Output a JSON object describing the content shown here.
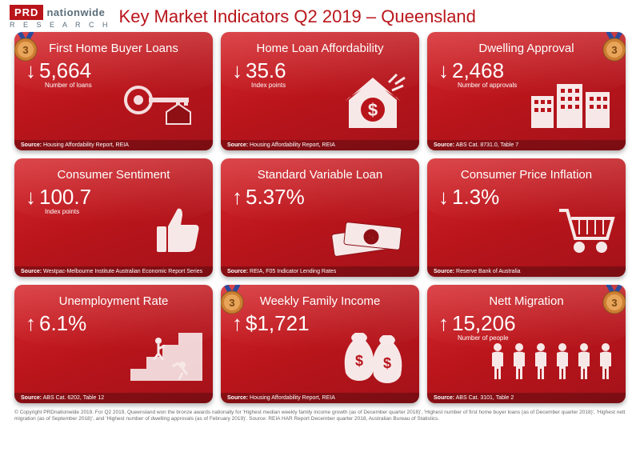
{
  "header": {
    "logo_prd": "PRD",
    "logo_nat": "nationwide",
    "logo_res": "R E S E A R C H",
    "title": "Key Market Indicators Q2 2019 – Queensland"
  },
  "cards": [
    {
      "title": "First Home Buyer Loans",
      "arrow": "down",
      "value": "5,664",
      "sublabel": "Number of loans",
      "source_label": "Source:",
      "source": "Housing Affordability Report, REIA",
      "medal": "left",
      "icon": "key"
    },
    {
      "title": "Home Loan Affordability",
      "arrow": "down",
      "value": "35.6",
      "sublabel": "Index points",
      "source_label": "Source:",
      "source": "Housing Affordability Report, REIA",
      "medal": null,
      "icon": "house-dollar"
    },
    {
      "title": "Dwelling Approval",
      "arrow": "down",
      "value": "2,468",
      "sublabel": "Number of approvals",
      "source_label": "Source:",
      "source": "ABS Cat. 8731.0, Table 7",
      "medal": "right",
      "icon": "buildings"
    },
    {
      "title": "Consumer Sentiment",
      "arrow": "down",
      "value": "100.7",
      "sublabel": "Index points",
      "source_label": "Source:",
      "source": "Westpac-Melbourne Institute Australian Economic Report Series",
      "medal": null,
      "icon": "thumb"
    },
    {
      "title": "Standard Variable Loan",
      "arrow": "up",
      "value": "5.37%",
      "sublabel": "",
      "source_label": "Source:",
      "source": "REIA, F05 Indicator Lending Rates",
      "medal": null,
      "icon": "cash"
    },
    {
      "title": "Consumer Price Inflation",
      "arrow": "down",
      "value": "1.3%",
      "sublabel": "",
      "source_label": "Source:",
      "source": "Reserve Bank of Australia",
      "medal": null,
      "icon": "cart"
    },
    {
      "title": "Unemployment Rate",
      "arrow": "up",
      "value": "6.1%",
      "sublabel": "",
      "source_label": "Source:",
      "source": "ABS Cat. 6202, Table 12",
      "medal": null,
      "icon": "stairs"
    },
    {
      "title": "Weekly Family Income",
      "arrow": "up",
      "value": "$1,721",
      "sublabel": "",
      "source_label": "Source:",
      "source": "Housing Affordability Report, REIA",
      "medal": "left",
      "icon": "moneybags"
    },
    {
      "title": "Nett Migration",
      "arrow": "up",
      "value": "15,206",
      "sublabel": "Number of people",
      "source_label": "Source:",
      "source": "ABS Cat. 3101, Table 2",
      "medal": "right",
      "icon": "people"
    }
  ],
  "medal_number": "3",
  "colors": {
    "brand_red": "#b9151b",
    "card_grad_top": "#d6272c",
    "card_grad_bot": "#a4121a",
    "logo_grey": "#5a6e7a",
    "footer_grey": "#6b6b6b",
    "medal_bronze": "#cd7f32",
    "ribbon_blue": "#2a4b9b"
  },
  "footer": "© Copyright PRDnationwide 2019. For Q2 2019, Queensland won the bronze awards nationally for 'Highest median weekly family income growth (as of December quarter 2018)', 'Highest number of first home buyer loans (as of December quarter 2018)', 'Highest nett migration (as of September 2018)', and 'Highest number of dwelling approvals (as of February 2019)'. Source: REIA HAR Report December quarter 2018, Australian Bureau of Statistics."
}
